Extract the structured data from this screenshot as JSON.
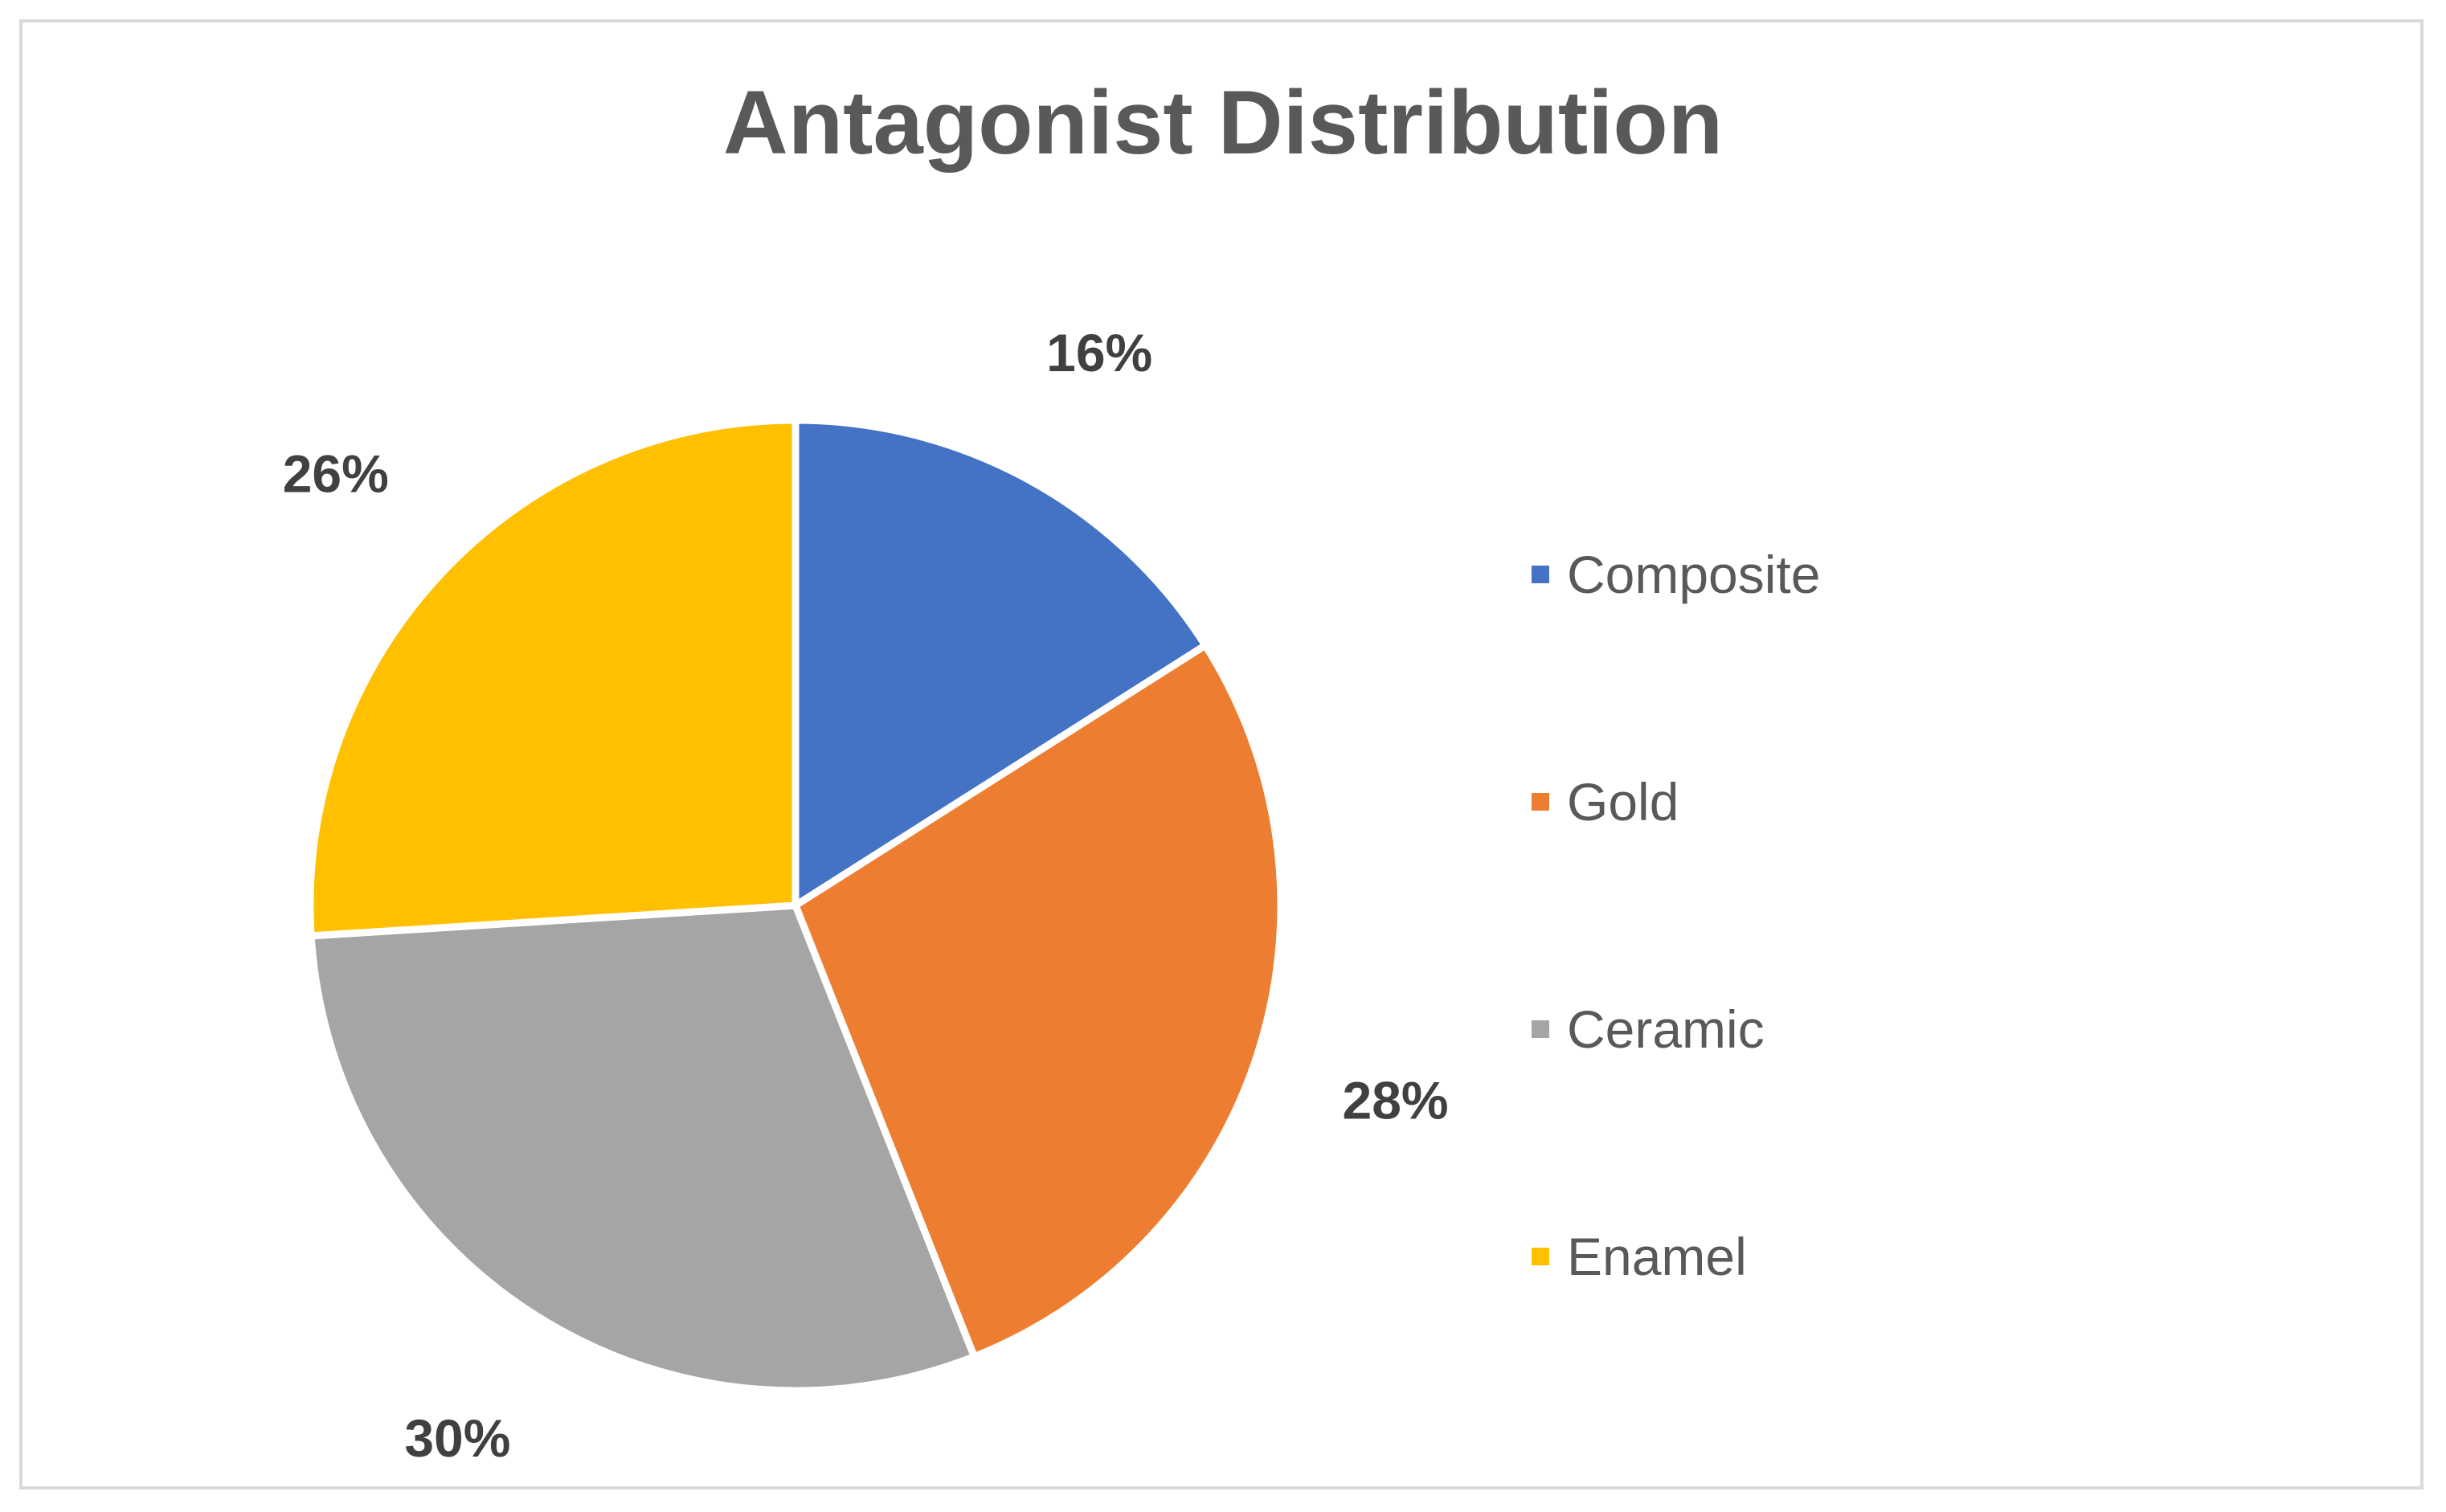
{
  "chart_data": {
    "type": "pie",
    "title": "Antagonist Distribution",
    "categories": [
      "Composite",
      "Gold",
      "Ceramic",
      "Enamel"
    ],
    "values": [
      16,
      28,
      30,
      26
    ],
    "data_labels": [
      "16%",
      "28%",
      "30%",
      "26%"
    ],
    "colors": [
      "#4472C4",
      "#ED7D31",
      "#A5A5A5",
      "#FFC000"
    ],
    "legend": "right",
    "start_angle": "12 o'clock",
    "direction": "clockwise"
  }
}
